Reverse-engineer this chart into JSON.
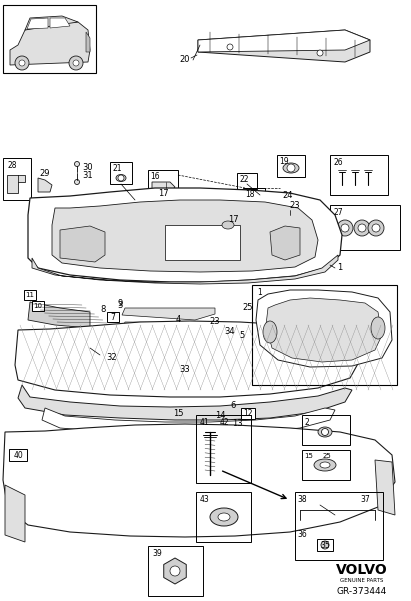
{
  "bg_color": "#ffffff",
  "line_color": "#1a1a1a",
  "logo_text": "VOLVO",
  "logo_sub": "GENUINE PARTS",
  "part_number": "GR-373444",
  "fig_width": 4.11,
  "fig_height": 6.01,
  "dpi": 100,
  "gray1": "#e0e0e0",
  "gray2": "#d0d0d0",
  "gray3": "#c0c0c0",
  "gray4": "#b0b0b0",
  "gray5": "#f5f5f5"
}
